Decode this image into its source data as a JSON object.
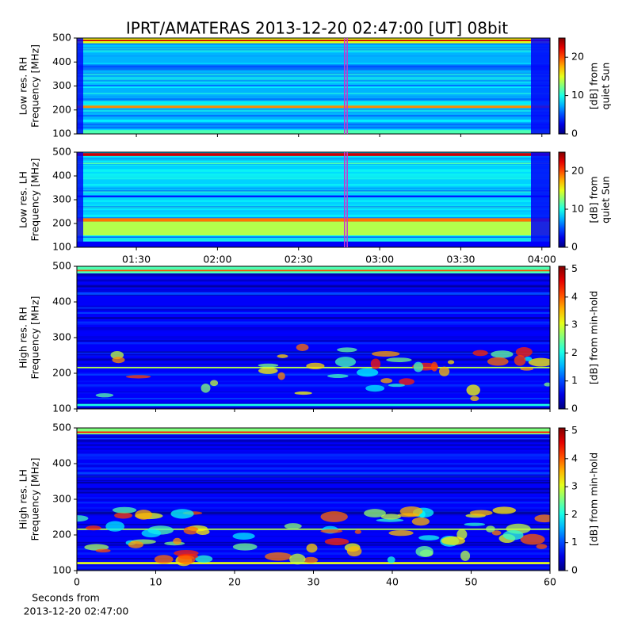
{
  "title": "IPRT/AMATERAS 2013-12-20 02:47:00 [UT]   08bit",
  "chart_data": [
    {
      "type": "heatmap",
      "ylabel": [
        "Low res. RH",
        "Frequency [MHz]"
      ],
      "ylim": [
        100,
        500
      ],
      "yticks": [
        100,
        200,
        300,
        400,
        500
      ],
      "colormap": "jet",
      "colorbar": {
        "label": [
          "[dB] from",
          "quiet Sun"
        ],
        "lim": [
          0,
          25
        ],
        "ticks": [
          0,
          10,
          20
        ]
      }
    },
    {
      "type": "heatmap",
      "ylabel": [
        "Low res. LH",
        "Frequency [MHz]"
      ],
      "ylim": [
        100,
        500
      ],
      "yticks": [
        100,
        200,
        300,
        400,
        500
      ],
      "colormap": "jet",
      "colorbar": {
        "label": [
          "[dB] from",
          "quiet Sun"
        ],
        "lim": [
          0,
          25
        ],
        "ticks": [
          0,
          10,
          20
        ]
      }
    },
    {
      "type": "heatmap",
      "ylabel": [
        "High res. RH",
        "Frequency [MHz]"
      ],
      "ylim": [
        100,
        500
      ],
      "yticks": [
        100,
        200,
        300,
        400,
        500
      ],
      "colormap": "jet",
      "colorbar": {
        "label": [
          "[dB] from min-hold"
        ],
        "lim": [
          0,
          5.1
        ],
        "ticks": [
          0,
          1,
          2,
          3,
          4,
          5
        ]
      }
    },
    {
      "type": "heatmap",
      "ylabel": [
        "High res. LH",
        "Frequency [MHz]"
      ],
      "ylim": [
        100,
        500
      ],
      "yticks": [
        100,
        200,
        300,
        400,
        500
      ],
      "colormap": "jet",
      "colorbar": {
        "label": [
          "[dB] from min-hold"
        ],
        "lim": [
          0,
          5.1
        ],
        "ticks": [
          0,
          1,
          2,
          3,
          4,
          5
        ]
      }
    }
  ],
  "time_axis": {
    "xlim": [
      "01:08",
      "04:03"
    ],
    "xticks": [
      "01:30",
      "02:00",
      "02:30",
      "03:00",
      "03:30",
      "04:00"
    ],
    "markers": [
      "02:47",
      "02:48"
    ],
    "marker_color": "#cc33cc"
  },
  "seconds_axis": {
    "xlim": [
      0,
      60
    ],
    "xticks": [
      0,
      10,
      20,
      30,
      40,
      50,
      60
    ],
    "xlabel": [
      "Seconds from",
      "2013-12-20 02:47:00"
    ]
  }
}
